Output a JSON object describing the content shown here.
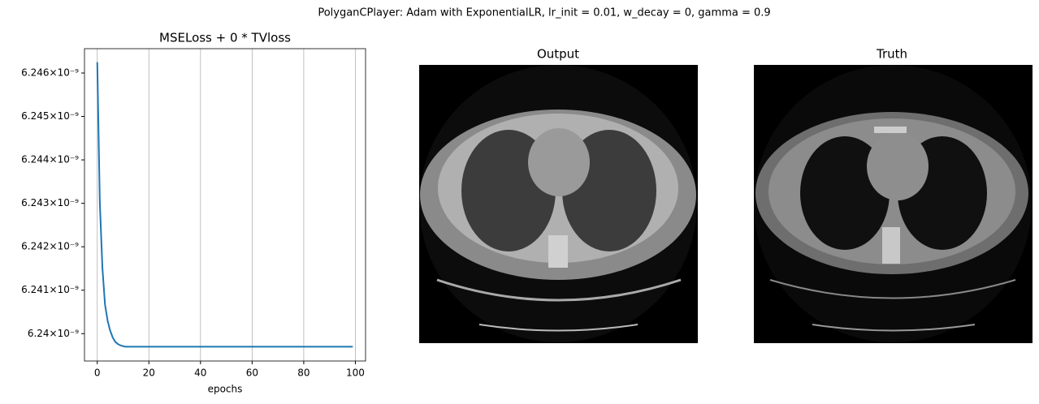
{
  "suptitle": "PolyganCPlayer: Adam with ExponentialLR, lr_init = 0.01, w_decay = 0, gamma = 0.9",
  "chart_data": [
    {
      "type": "line",
      "title": "MSELoss + 0 * TVloss",
      "x_label": "epochs",
      "x": [
        0,
        1,
        2,
        3,
        4,
        5,
        6,
        7,
        8,
        9,
        10,
        11,
        12,
        13,
        14,
        15,
        16,
        17,
        18,
        19,
        20,
        21,
        22,
        23,
        24,
        25,
        26,
        27,
        28,
        29,
        30,
        31,
        32,
        33,
        34,
        35,
        36,
        37,
        38,
        39,
        40,
        41,
        42,
        43,
        44,
        45,
        46,
        47,
        48,
        49,
        50,
        51,
        52,
        53,
        54,
        55,
        56,
        57,
        58,
        59,
        60,
        61,
        62,
        63,
        64,
        65,
        66,
        67,
        68,
        69,
        70,
        71,
        72,
        73,
        74,
        75,
        76,
        77,
        78,
        79,
        80,
        81,
        82,
        83,
        84,
        85,
        86,
        87,
        88,
        89,
        90,
        91,
        92,
        93,
        94,
        95,
        96,
        97,
        98,
        99
      ],
      "series": [
        {
          "color": "#1f77b4",
          "values": [
            6.24625e-09,
            6.24301e-09,
            6.24151e-09,
            6.24067e-09,
            6.2403e-09,
            6.24007e-09,
            6.23991e-09,
            6.23981e-09,
            6.23976e-09,
            6.23973e-09,
            6.23971e-09,
            6.2397e-09,
            6.2397e-09,
            6.2397e-09,
            6.2397e-09,
            6.2397e-09,
            6.2397e-09,
            6.2397e-09,
            6.2397e-09,
            6.2397e-09,
            6.2397e-09,
            6.2397e-09,
            6.2397e-09,
            6.2397e-09,
            6.2397e-09,
            6.2397e-09,
            6.2397e-09,
            6.2397e-09,
            6.2397e-09,
            6.2397e-09,
            6.2397e-09,
            6.2397e-09,
            6.2397e-09,
            6.2397e-09,
            6.2397e-09,
            6.2397e-09,
            6.2397e-09,
            6.2397e-09,
            6.2397e-09,
            6.2397e-09,
            6.2397e-09,
            6.2397e-09,
            6.2397e-09,
            6.2397e-09,
            6.2397e-09,
            6.2397e-09,
            6.2397e-09,
            6.2397e-09,
            6.2397e-09,
            6.2397e-09,
            6.2397e-09,
            6.2397e-09,
            6.2397e-09,
            6.2397e-09,
            6.2397e-09,
            6.2397e-09,
            6.2397e-09,
            6.2397e-09,
            6.2397e-09,
            6.2397e-09,
            6.2397e-09,
            6.2397e-09,
            6.2397e-09,
            6.2397e-09,
            6.2397e-09,
            6.2397e-09,
            6.2397e-09,
            6.2397e-09,
            6.2397e-09,
            6.2397e-09,
            6.2397e-09,
            6.2397e-09,
            6.2397e-09,
            6.2397e-09,
            6.2397e-09,
            6.2397e-09,
            6.2397e-09,
            6.2397e-09,
            6.2397e-09,
            6.2397e-09,
            6.2397e-09,
            6.2397e-09,
            6.2397e-09,
            6.2397e-09,
            6.2397e-09,
            6.2397e-09,
            6.2397e-09,
            6.2397e-09,
            6.2397e-09,
            6.2397e-09,
            6.2397e-09,
            6.2397e-09,
            6.2397e-09,
            6.2397e-09,
            6.2397e-09,
            6.2397e-09,
            6.2397e-09,
            6.2397e-09,
            6.2397e-09,
            6.2397e-09
          ]
        }
      ],
      "xlim": [
        -4.95,
        103.95
      ],
      "xticks": [
        0,
        20,
        40,
        60,
        80,
        100
      ],
      "ylim": [
        6.23937e-09,
        6.24656e-09
      ],
      "yticks": [
        {
          "value": 6.24e-09,
          "label": "6.24×10⁻⁹"
        },
        {
          "value": 6.241e-09,
          "label": "6.241×10⁻⁹"
        },
        {
          "value": 6.242e-09,
          "label": "6.242×10⁻⁹"
        },
        {
          "value": 6.243e-09,
          "label": "6.243×10⁻⁹"
        },
        {
          "value": 6.244e-09,
          "label": "6.244×10⁻⁹"
        },
        {
          "value": 6.245e-09,
          "label": "6.245×10⁻⁹"
        },
        {
          "value": 6.246e-09,
          "label": "6.246×10⁻⁹"
        }
      ],
      "grid": "x"
    }
  ],
  "panels": [
    {
      "title": "Output"
    },
    {
      "title": "Truth"
    }
  ]
}
